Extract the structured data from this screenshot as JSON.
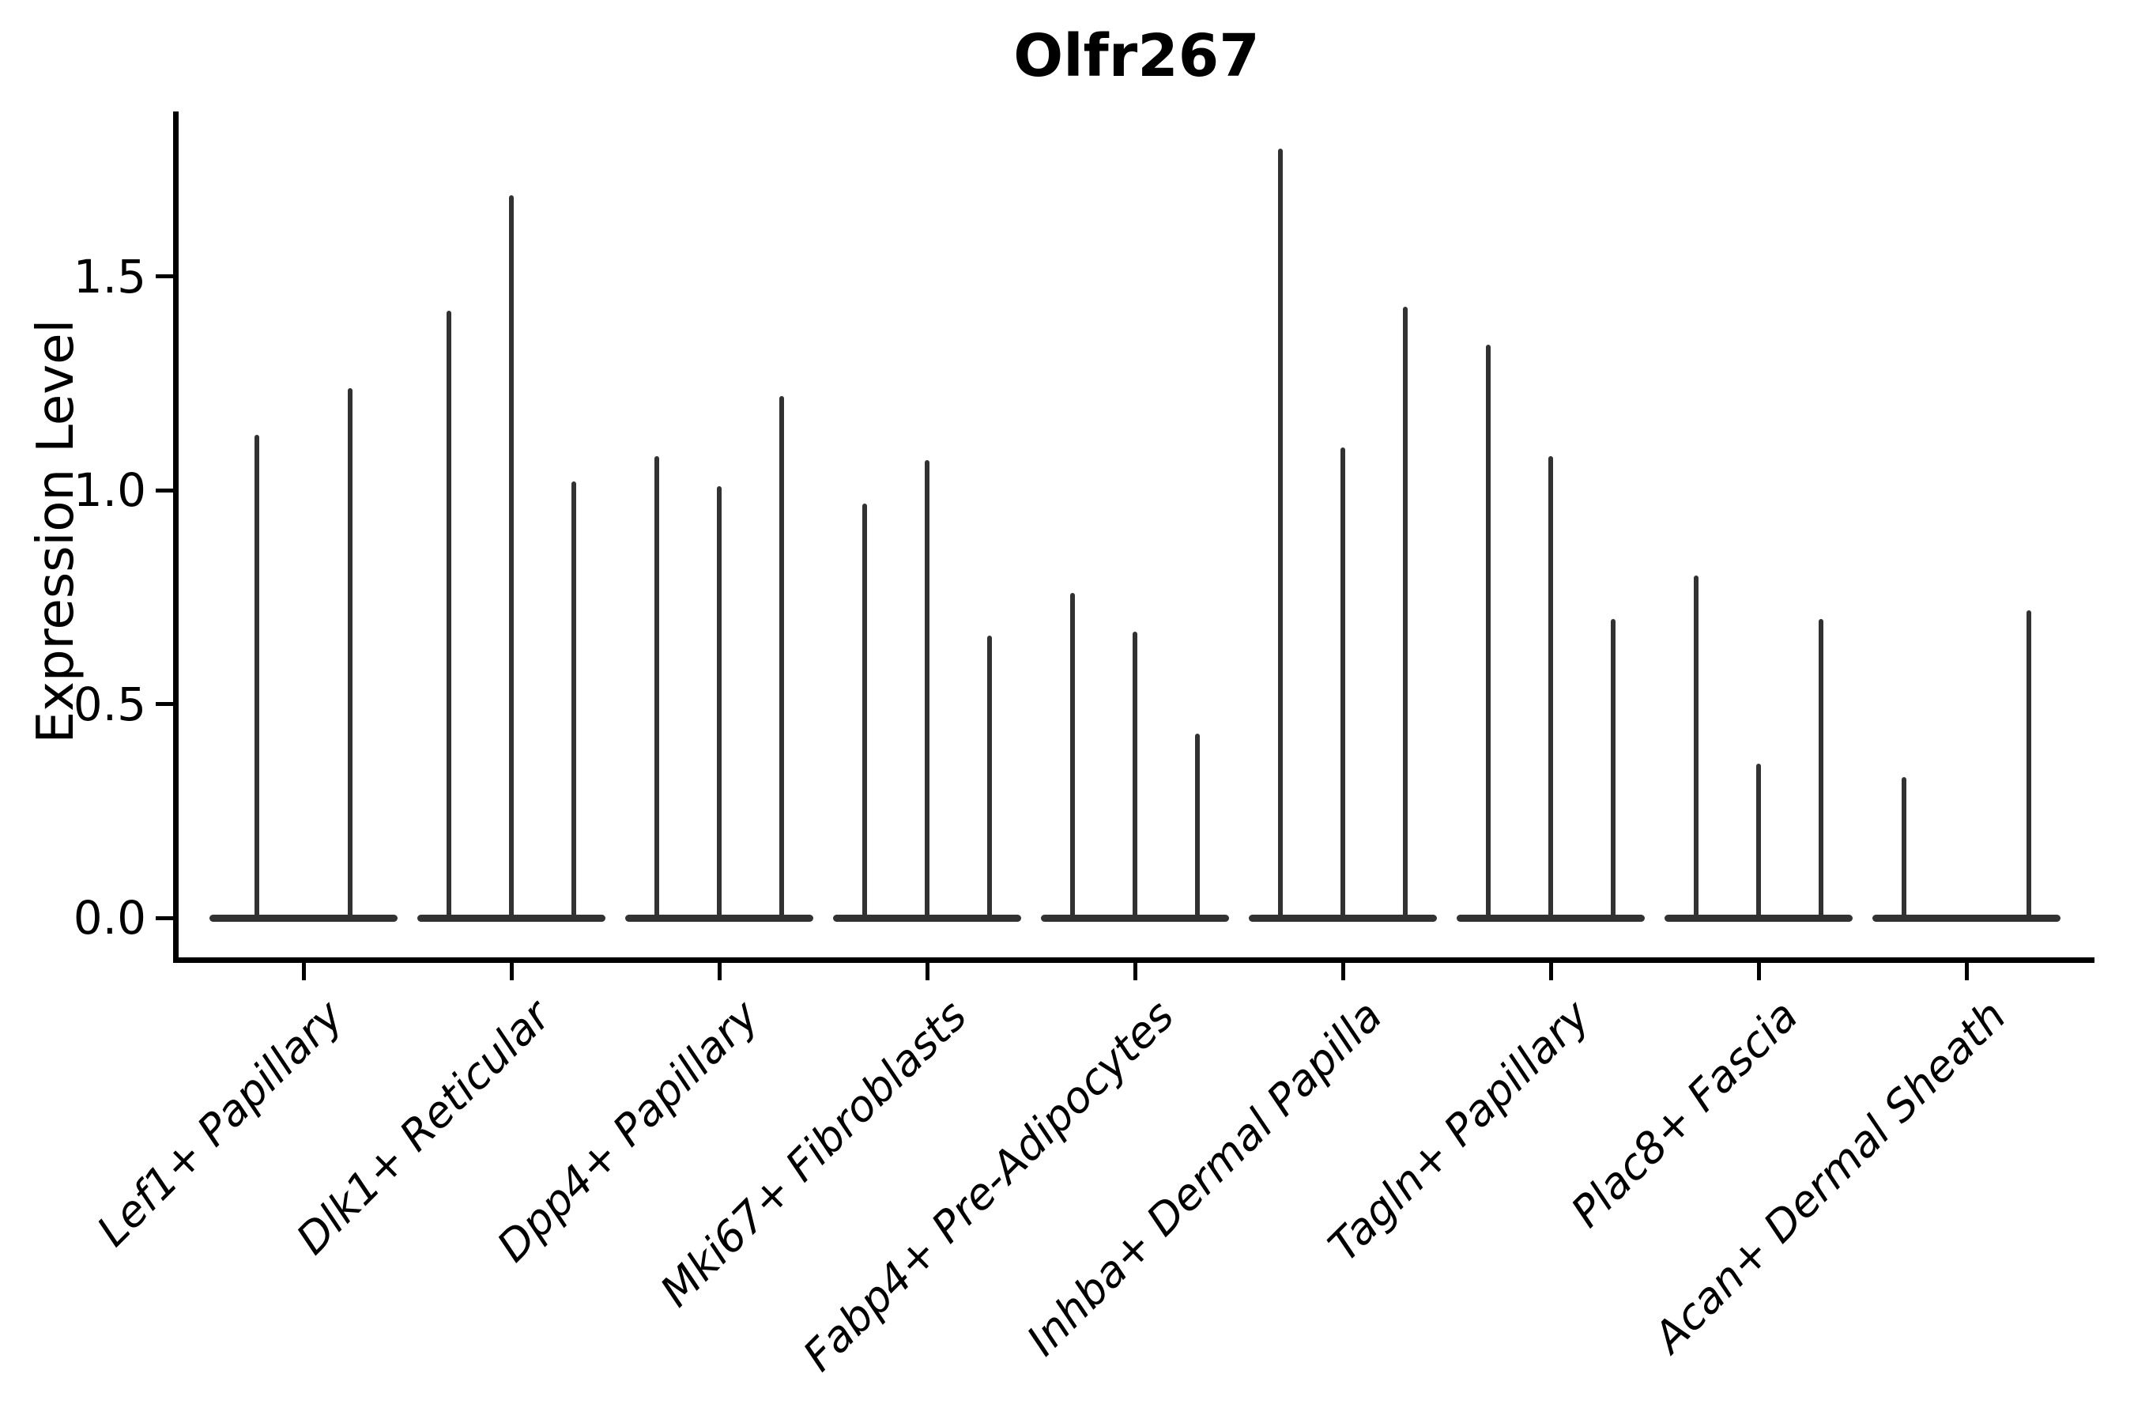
{
  "chart_data": {
    "type": "violin",
    "title": "Olfr267",
    "ylabel": "Expression Level",
    "xlabel": "",
    "ylim": [
      -0.09,
      1.89
    ],
    "grid": false,
    "legend": "none",
    "baseline_value": 0.0,
    "yticks": [
      {
        "label": "0.0",
        "value": 0.0
      },
      {
        "label": "0.5",
        "value": 0.5
      },
      {
        "label": "1.0",
        "value": 1.0
      },
      {
        "label": "1.5",
        "value": 1.5
      }
    ],
    "categories": [
      "Lef1+ Papillary",
      "Dlk1+ Reticular",
      "Dpp4+ Papillary",
      "Mki67+ Fibroblasts",
      "Fabp4+ Pre-Adipocytes",
      "Inhba+ Dermal Papilla",
      "Tagln+ Papillary",
      "Plac8+ Fascia",
      "Acan+ Dermal Sheath"
    ],
    "groups": [
      {
        "category": "Lef1+ Papillary",
        "peaks": [
          1.13,
          1.24
        ]
      },
      {
        "category": "Dlk1+ Reticular",
        "peaks": [
          1.42,
          1.69,
          1.02
        ]
      },
      {
        "category": "Dpp4+ Papillary",
        "peaks": [
          1.08,
          1.01,
          1.22
        ]
      },
      {
        "category": "Mki67+ Fibroblasts",
        "peaks": [
          0.97,
          1.07,
          0.66
        ]
      },
      {
        "category": "Fabp4+ Pre-Adipocytes",
        "peaks": [
          0.76,
          0.67,
          0.43
        ]
      },
      {
        "category": "Inhba+ Dermal Papilla",
        "peaks": [
          1.8,
          1.1,
          1.43
        ]
      },
      {
        "category": "Tagln+ Papillary",
        "peaks": [
          1.34,
          1.08,
          0.7
        ]
      },
      {
        "category": "Plac8+ Fascia",
        "peaks": [
          0.8,
          0.36,
          0.7
        ]
      },
      {
        "category": "Acan+ Dermal Sheath",
        "peaks": [
          0.33,
          null,
          0.72
        ]
      }
    ],
    "style": {
      "violin_color": "#323232",
      "axis_color": "#000000",
      "text_color": "#000000",
      "background": "#ffffff"
    }
  }
}
